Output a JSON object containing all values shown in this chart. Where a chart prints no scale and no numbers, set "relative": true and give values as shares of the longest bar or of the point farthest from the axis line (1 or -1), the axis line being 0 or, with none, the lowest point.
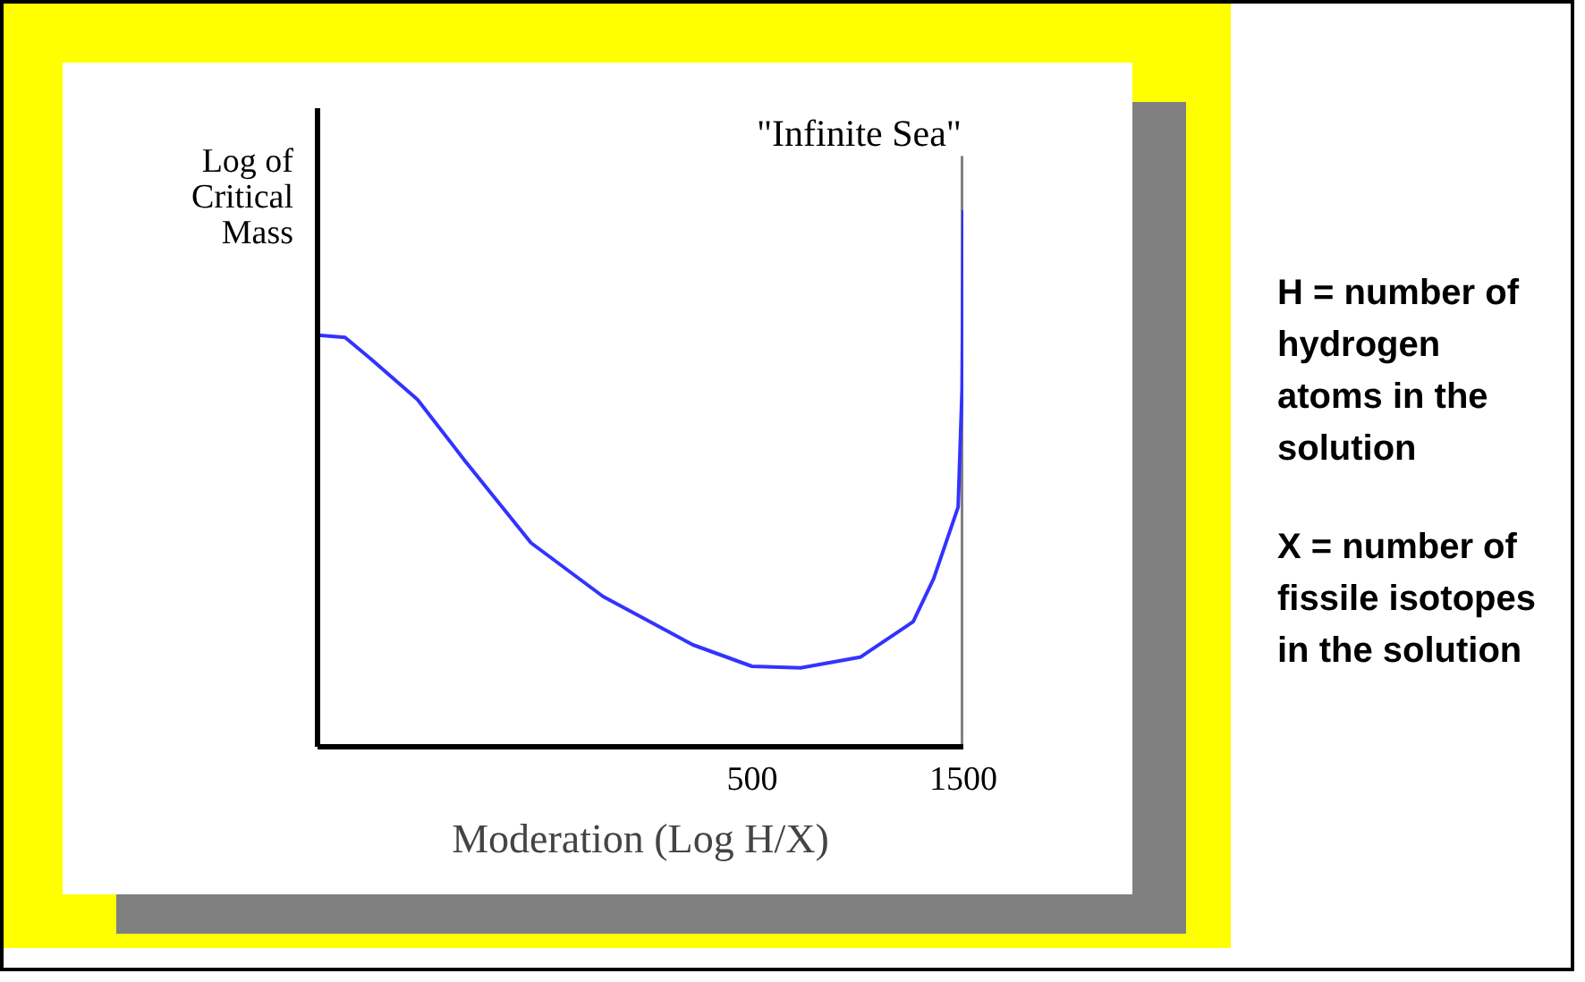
{
  "chart_data": {
    "type": "line",
    "xlabel": "Moderation (Log H/X)",
    "ylabel": "Log of Critical Mass",
    "relative": true,
    "log": "x",
    "xlim": [
      52,
      1500
    ],
    "xticks": [
      500,
      1500
    ],
    "x": [
      52,
      60,
      68.6,
      87.5,
      112,
      158,
      230,
      367,
      499,
      643,
      877,
      1155,
      1285,
      1460,
      1490,
      1500
    ],
    "series": [
      {
        "color": "#3333ff",
        "values": [
          0.767,
          0.763,
          0.723,
          0.647,
          0.533,
          0.38,
          0.28,
          0.19,
          0.15,
          0.147,
          0.167,
          0.233,
          0.313,
          0.447,
          0.667,
          1.0
        ]
      }
    ],
    "ref_lines": [
      {
        "axis": "x",
        "value": 1500,
        "label": "\"Infinite Sea\"",
        "color": "#808080"
      }
    ],
    "annotations": [
      "H = number of hydrogen atoms in the solution",
      "X = number of fissile isotopes in the solution"
    ],
    "grid": false
  }
}
